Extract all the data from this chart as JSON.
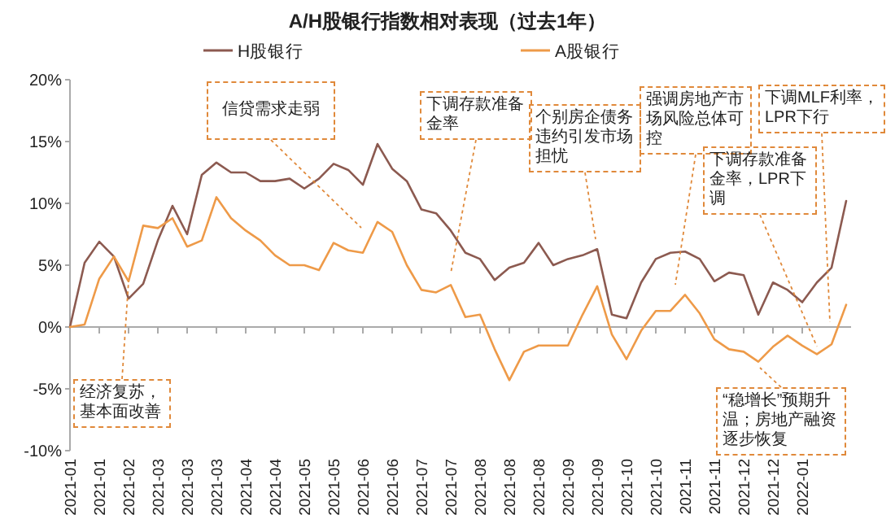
{
  "chart_data": {
    "type": "line",
    "title": "A/H股银行指数相对表现（过去1年）",
    "legend": "top",
    "categories": [
      "2021-01",
      null,
      "2021-01",
      null,
      "2021-02",
      null,
      "2021-03",
      null,
      "2021-03",
      null,
      "2021-03",
      null,
      "2021-04",
      null,
      "2021-04",
      null,
      "2021-05",
      null,
      "2021-05",
      null,
      "2021-06",
      null,
      "2021-06",
      null,
      "2021-07",
      null,
      "2021-07",
      null,
      "2021-08",
      null,
      "2021-08",
      null,
      "2021-08",
      null,
      "2021-09",
      null,
      "2021-09",
      null,
      "2021-10",
      null,
      "2021-10",
      null,
      "2021-11",
      null,
      "2021-11",
      null,
      "2021-12",
      null,
      "2021-12",
      null,
      "2022-01",
      null,
      null,
      null
    ],
    "ylim": [
      -10,
      20
    ],
    "yticks": [
      {
        "value": -10,
        "label": "-10%"
      },
      {
        "value": -5,
        "label": "-5%"
      },
      {
        "value": 0,
        "label": "0%"
      },
      {
        "value": 5,
        "label": "5%"
      },
      {
        "value": 10,
        "label": "10%"
      },
      {
        "value": 15,
        "label": "15%"
      },
      {
        "value": 20,
        "label": "20%"
      }
    ],
    "series": [
      {
        "name": "H股银行",
        "color": "#8c5a50",
        "values": [
          0,
          5.2,
          6.9,
          5.7,
          2.3,
          3.5,
          7.0,
          9.8,
          7.5,
          12.3,
          13.3,
          12.5,
          12.5,
          11.8,
          11.8,
          12.0,
          11.2,
          12.0,
          13.2,
          12.7,
          11.5,
          14.8,
          12.8,
          11.8,
          9.5,
          9.2,
          7.8,
          6.0,
          5.5,
          3.8,
          4.8,
          5.2,
          6.8,
          5.0,
          5.5,
          5.8,
          6.3,
          1.0,
          0.7,
          3.6,
          5.5,
          6.0,
          6.1,
          5.5,
          3.7,
          4.4,
          4.2,
          1.0,
          3.6,
          3.0,
          2.0,
          3.6,
          4.8,
          10.2
        ]
      },
      {
        "name": "A股银行",
        "color": "#ee9a48",
        "values": [
          0,
          0.2,
          3.9,
          5.7,
          3.7,
          8.2,
          8.0,
          8.8,
          6.5,
          7.0,
          10.5,
          8.8,
          7.8,
          7.0,
          5.8,
          5.0,
          5.0,
          4.6,
          6.8,
          6.2,
          6.0,
          8.5,
          7.7,
          5.0,
          3.0,
          2.8,
          3.4,
          0.8,
          1.0,
          -1.8,
          -4.3,
          -2.0,
          -1.5,
          -1.5,
          -1.5,
          1.0,
          3.3,
          -0.6,
          -2.6,
          -0.3,
          1.3,
          1.3,
          2.6,
          1.1,
          -1.0,
          -1.8,
          -2.0,
          -2.8,
          -1.6,
          -0.7,
          -1.5,
          -2.2,
          -1.4,
          1.8
        ]
      }
    ],
    "annotations": [
      {
        "text": "经济复苏，基本面改善",
        "x": "2021-02",
        "y": 3.7
      },
      "信贷需求走弱",
      "下调存款准备金率",
      "个别房企债务违约引发市场担忧",
      "强调房地产市场风险总体可控",
      "下调存款准备金率，LPR下调",
      "下调MLF利率，LPR下行",
      "“稳增长”预期升温；房地产融资逐步恢复"
    ]
  }
}
